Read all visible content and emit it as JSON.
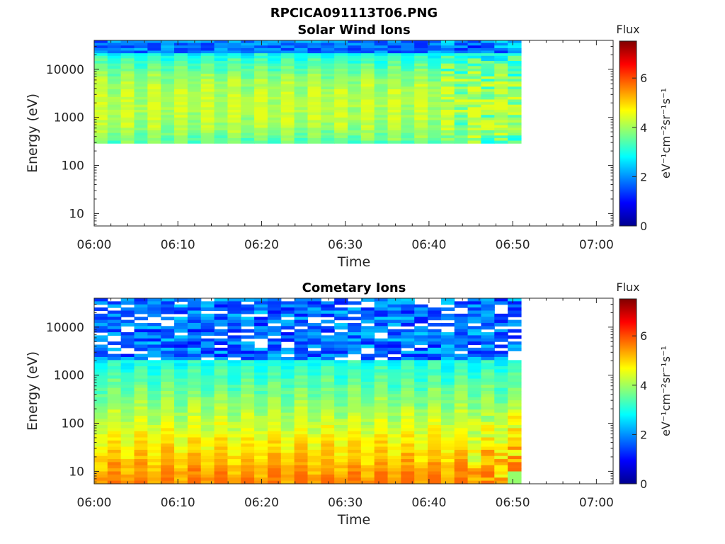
{
  "figure_title": "RPCICA091113T06.PNG",
  "colorbar": {
    "label": "Flux",
    "unit_label": "eV⁻¹cm⁻²sr⁻¹s⁻¹",
    "range": [
      0,
      7.5
    ],
    "ticks": [
      0,
      2,
      4,
      6
    ],
    "colormap": "jet"
  },
  "chart_data": [
    {
      "type": "heatmap",
      "title": "Solar Wind Ions",
      "xlabel": "Time",
      "ylabel": "Energy (eV)",
      "x_range": [
        "06:00",
        "07:02"
      ],
      "x_ticks": [
        "06:00",
        "06:10",
        "06:20",
        "06:30",
        "06:40",
        "06:50",
        "07:00"
      ],
      "y_scale": "log",
      "y_range": [
        5.5,
        40000
      ],
      "y_ticks": [
        10,
        100,
        1000,
        10000
      ],
      "y_tick_labels": [
        "10",
        "100",
        "1000",
        "10000"
      ],
      "data_time_range": [
        "06:00",
        "06:51"
      ],
      "data_energy_range": [
        290,
        40000
      ],
      "num_sweeps": 32,
      "color_value_range": [
        1.0,
        4.5
      ]
    },
    {
      "type": "heatmap",
      "title": "Cometary Ions",
      "xlabel": "Time",
      "ylabel": "Energy (eV)",
      "x_range": [
        "06:00",
        "07:02"
      ],
      "x_ticks": [
        "06:00",
        "06:10",
        "06:20",
        "06:30",
        "06:40",
        "06:50",
        "07:00"
      ],
      "y_scale": "log",
      "y_range": [
        5.5,
        40000
      ],
      "y_ticks": [
        10,
        100,
        1000,
        10000
      ],
      "y_tick_labels": [
        "10",
        "100",
        "1000",
        "10000"
      ],
      "data_time_range": [
        "06:00",
        "06:51"
      ],
      "data_energy_range": [
        5.5,
        40000
      ],
      "num_sweeps": 32,
      "color_value_range": [
        0.5,
        5.8
      ]
    }
  ]
}
